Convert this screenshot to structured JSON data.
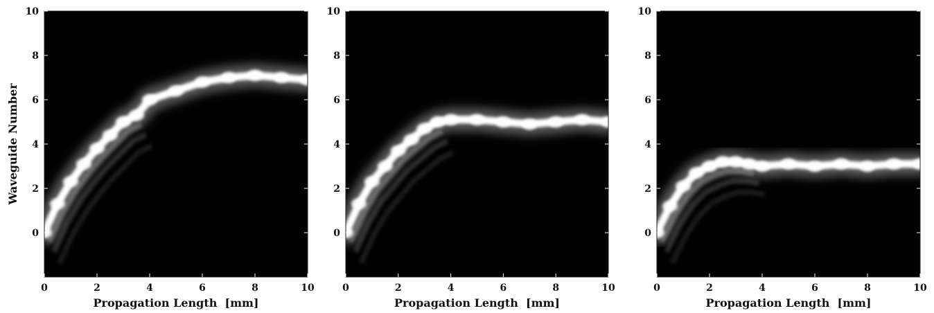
{
  "figure": {
    "ylabel": "Waveguide Number",
    "xlabel": "Propagation Length  [mm]"
  },
  "chart_data": [
    {
      "type": "heatmap",
      "xlabel": "Propagation Length  [mm]",
      "ylabel": "Waveguide Number",
      "xlim": [
        0,
        10
      ],
      "ylim": [
        -2,
        10
      ],
      "xticks": [
        0,
        2,
        4,
        6,
        8,
        10
      ],
      "yticks": [
        0,
        2,
        4,
        6,
        8,
        10
      ],
      "colormap": [
        "#000000",
        "#ffffff"
      ],
      "beam_path": {
        "x": [
          0,
          0.5,
          1,
          1.5,
          2,
          2.5,
          3,
          3.5,
          4,
          5,
          6,
          7,
          8,
          9,
          10
        ],
        "y": [
          0,
          1.3,
          2.3,
          3.1,
          3.8,
          4.4,
          5.0,
          5.3,
          6.0,
          6.4,
          6.8,
          7.0,
          7.1,
          7.0,
          6.9
        ]
      }
    },
    {
      "type": "heatmap",
      "xlabel": "Propagation Length  [mm]",
      "ylabel": "",
      "xlim": [
        0,
        10
      ],
      "ylim": [
        -2,
        10
      ],
      "xticks": [
        0,
        2,
        4,
        6,
        8,
        10
      ],
      "yticks": [
        0,
        2,
        4,
        6,
        8,
        10
      ],
      "colormap": [
        "#000000",
        "#ffffff"
      ],
      "beam_path": {
        "x": [
          0,
          0.5,
          1,
          1.5,
          2,
          2.5,
          3,
          3.5,
          4,
          5,
          6,
          7,
          8,
          9,
          10
        ],
        "y": [
          0,
          1.3,
          2.3,
          3.0,
          3.7,
          4.2,
          4.7,
          5.0,
          5.1,
          5.1,
          5.0,
          4.9,
          5.0,
          5.1,
          5.0
        ]
      }
    },
    {
      "type": "heatmap",
      "xlabel": "Propagation Length  [mm]",
      "ylabel": "",
      "xlim": [
        0,
        10
      ],
      "ylim": [
        -2,
        10
      ],
      "xticks": [
        0,
        2,
        4,
        6,
        8,
        10
      ],
      "yticks": [
        0,
        2,
        4,
        6,
        8,
        10
      ],
      "colormap": [
        "#000000",
        "#ffffff"
      ],
      "beam_path": {
        "x": [
          0,
          0.5,
          1,
          1.5,
          2,
          2.5,
          3,
          3.5,
          4,
          5,
          6,
          7,
          8,
          9,
          10
        ],
        "y": [
          0,
          1.2,
          2.1,
          2.7,
          3.0,
          3.2,
          3.2,
          3.1,
          3.0,
          3.1,
          3.0,
          3.1,
          3.0,
          3.1,
          3.1
        ]
      }
    }
  ]
}
